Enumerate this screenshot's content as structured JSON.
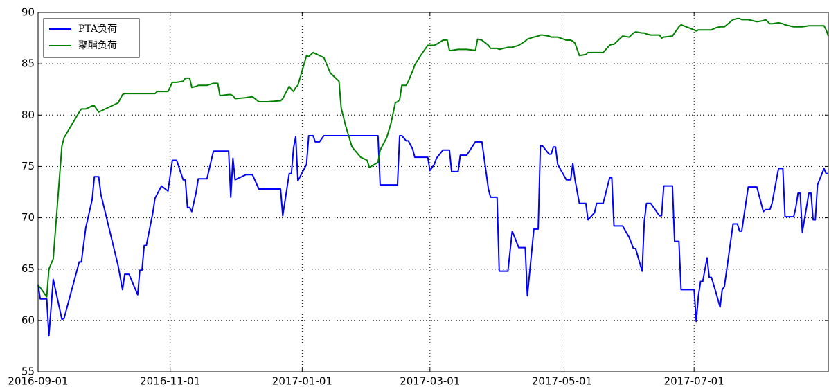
{
  "chart_data": {
    "type": "line",
    "x": [
      "2016-09-01",
      "2016-09-02",
      "2016-09-05",
      "2016-09-06",
      "2016-09-08",
      "2016-09-12",
      "2016-09-13",
      "2016-09-20",
      "2016-09-21",
      "2016-09-23",
      "2016-09-26",
      "2016-09-27",
      "2016-09-29",
      "2016-09-30",
      "2016-10-08",
      "2016-10-10",
      "2016-10-11",
      "2016-10-13",
      "2016-10-17",
      "2016-10-18",
      "2016-10-19",
      "2016-10-20",
      "2016-10-21",
      "2016-10-24",
      "2016-10-25",
      "2016-10-26",
      "2016-10-28",
      "2016-10-31",
      "2016-11-02",
      "2016-11-04",
      "2016-11-07",
      "2016-11-08",
      "2016-11-09",
      "2016-11-10",
      "2016-11-11",
      "2016-11-13",
      "2016-11-14",
      "2016-11-18",
      "2016-11-21",
      "2016-11-23",
      "2016-11-24",
      "2016-11-28",
      "2016-11-29",
      "2016-11-30",
      "2016-12-01",
      "2016-12-06",
      "2016-12-09",
      "2016-12-12",
      "2016-12-16",
      "2016-12-22",
      "2016-12-23",
      "2016-12-26",
      "2016-12-27",
      "2016-12-28",
      "2016-12-29",
      "2016-12-30",
      "2017-01-03",
      "2017-01-04",
      "2017-01-06",
      "2017-01-07",
      "2017-01-09",
      "2017-01-11",
      "2017-01-14",
      "2017-01-18",
      "2017-01-19",
      "2017-01-21",
      "2017-01-24",
      "2017-01-28",
      "2017-01-31",
      "2017-02-01",
      "2017-02-05",
      "2017-02-06",
      "2017-02-09",
      "2017-02-11",
      "2017-02-13",
      "2017-02-14",
      "2017-02-15",
      "2017-02-16",
      "2017-02-18",
      "2017-02-19",
      "2017-02-21",
      "2017-02-22",
      "2017-02-25",
      "2017-02-28",
      "2017-03-01",
      "2017-03-03",
      "2017-03-04",
      "2017-03-07",
      "2017-03-09",
      "2017-03-10",
      "2017-03-11",
      "2017-03-14",
      "2017-03-15",
      "2017-03-18",
      "2017-03-22",
      "2017-03-23",
      "2017-03-25",
      "2017-03-28",
      "2017-03-29",
      "2017-04-01",
      "2017-04-02",
      "2017-04-06",
      "2017-04-08",
      "2017-04-11",
      "2017-04-14",
      "2017-04-15",
      "2017-04-18",
      "2017-04-20",
      "2017-04-21",
      "2017-04-22",
      "2017-04-25",
      "2017-04-26",
      "2017-04-27",
      "2017-04-28",
      "2017-04-29",
      "2017-05-03",
      "2017-05-05",
      "2017-05-06",
      "2017-05-07",
      "2017-05-09",
      "2017-05-12",
      "2017-05-13",
      "2017-05-16",
      "2017-05-17",
      "2017-05-20",
      "2017-05-23",
      "2017-05-24",
      "2017-05-25",
      "2017-05-29",
      "2017-06-01",
      "2017-06-03",
      "2017-06-04",
      "2017-06-07",
      "2017-06-08",
      "2017-06-09",
      "2017-06-11",
      "2017-06-15",
      "2017-06-16",
      "2017-06-17",
      "2017-06-21",
      "2017-06-22",
      "2017-06-24",
      "2017-06-25",
      "2017-07-01",
      "2017-07-02",
      "2017-07-03",
      "2017-07-04",
      "2017-07-05",
      "2017-07-07",
      "2017-07-08",
      "2017-07-09",
      "2017-07-11",
      "2017-07-13",
      "2017-07-14",
      "2017-07-15",
      "2017-07-19",
      "2017-07-21",
      "2017-07-22",
      "2017-07-23",
      "2017-07-26",
      "2017-07-30",
      "2017-08-02",
      "2017-08-03",
      "2017-08-05",
      "2017-08-06",
      "2017-08-09",
      "2017-08-11",
      "2017-08-12",
      "2017-08-16",
      "2017-08-17",
      "2017-08-18",
      "2017-08-19",
      "2017-08-20",
      "2017-08-23",
      "2017-08-24",
      "2017-08-25",
      "2017-08-26",
      "2017-08-27",
      "2017-08-30",
      "2017-08-31",
      "2017-09-01"
    ],
    "series": [
      {
        "name": "PTA负荷",
        "color": "#0000ff",
        "values": [
          63.5,
          62.1,
          62.1,
          58.5,
          64.0,
          60.1,
          60.2,
          65.7,
          65.7,
          69.0,
          71.8,
          74.0,
          74.0,
          72.3,
          65.3,
          63.0,
          64.5,
          64.5,
          62.5,
          64.9,
          64.9,
          67.3,
          67.3,
          70.5,
          71.9,
          72.3,
          73.1,
          72.6,
          75.6,
          75.6,
          73.7,
          73.7,
          71.0,
          71.0,
          70.6,
          72.5,
          73.8,
          73.8,
          76.5,
          76.5,
          76.5,
          76.5,
          72.0,
          75.8,
          73.7,
          74.2,
          74.2,
          72.8,
          72.8,
          72.8,
          70.2,
          74.3,
          74.3,
          76.8,
          77.9,
          73.6,
          75.2,
          78.0,
          78.0,
          77.4,
          77.4,
          78.0,
          78.0,
          78.0,
          78.0,
          78.0,
          78.0,
          78.0,
          78.0,
          78.0,
          78.0,
          73.2,
          73.2,
          73.2,
          73.2,
          73.2,
          78.0,
          78.0,
          77.5,
          77.5,
          76.7,
          75.9,
          75.9,
          75.9,
          74.6,
          75.2,
          75.8,
          76.6,
          76.6,
          76.6,
          74.5,
          74.5,
          76.1,
          76.1,
          77.4,
          77.4,
          77.4,
          72.8,
          72.0,
          72.0,
          64.8,
          64.8,
          68.7,
          67.1,
          67.1,
          62.4,
          68.9,
          68.9,
          77.0,
          77.0,
          76.2,
          76.2,
          76.9,
          76.9,
          75.2,
          73.7,
          73.7,
          75.3,
          73.7,
          71.4,
          71.4,
          69.8,
          70.5,
          71.4,
          71.4,
          73.9,
          73.9,
          69.2,
          69.2,
          68.1,
          67.0,
          67.0,
          64.8,
          69.6,
          71.4,
          71.4,
          70.2,
          70.2,
          73.1,
          73.1,
          67.7,
          67.7,
          63.0,
          63.0,
          59.9,
          62.4,
          63.8,
          63.8,
          66.1,
          64.2,
          64.2,
          62.8,
          61.3,
          63.0,
          63.3,
          69.4,
          69.4,
          68.7,
          68.7,
          73.0,
          73.0,
          70.6,
          70.8,
          70.8,
          71.4,
          74.8,
          74.8,
          70.1,
          70.1,
          71.0,
          72.4,
          72.4,
          68.6,
          72.4,
          72.4,
          69.8,
          69.8,
          73.2,
          74.8,
          74.3,
          74.3
        ]
      },
      {
        "name": "聚酯负荷",
        "color": "#008000",
        "values": [
          63.4,
          63.2,
          62.3,
          65.0,
          66.0,
          77.0,
          77.8,
          80.3,
          80.6,
          80.6,
          80.9,
          80.9,
          80.3,
          80.4,
          81.2,
          82.0,
          82.1,
          82.1,
          82.1,
          82.1,
          82.1,
          82.1,
          82.1,
          82.1,
          82.1,
          82.3,
          82.3,
          82.3,
          83.2,
          83.2,
          83.3,
          83.6,
          83.6,
          83.6,
          82.7,
          82.8,
          82.9,
          82.9,
          83.1,
          83.1,
          81.9,
          82.0,
          82.0,
          81.9,
          81.6,
          81.7,
          81.8,
          81.3,
          81.3,
          81.4,
          81.6,
          82.8,
          82.5,
          82.3,
          82.7,
          82.9,
          85.8,
          85.7,
          86.1,
          86.0,
          85.8,
          85.6,
          84.1,
          83.3,
          80.7,
          79.0,
          76.9,
          75.9,
          75.6,
          74.9,
          75.4,
          76.6,
          77.8,
          79.2,
          81.2,
          81.3,
          81.5,
          82.9,
          82.9,
          83.3,
          84.3,
          84.9,
          85.9,
          86.8,
          86.8,
          86.8,
          86.9,
          87.3,
          87.3,
          86.3,
          86.3,
          86.4,
          86.4,
          86.4,
          86.3,
          87.4,
          87.3,
          86.8,
          86.5,
          86.5,
          86.4,
          86.6,
          86.6,
          86.8,
          87.2,
          87.4,
          87.6,
          87.7,
          87.8,
          87.8,
          87.7,
          87.6,
          87.6,
          87.6,
          87.6,
          87.3,
          87.3,
          87.2,
          87.0,
          85.8,
          85.9,
          86.1,
          86.1,
          86.1,
          86.1,
          86.8,
          86.9,
          86.9,
          87.7,
          87.6,
          88.0,
          88.1,
          88.0,
          88.0,
          87.9,
          87.8,
          87.8,
          87.5,
          87.6,
          87.7,
          88.0,
          88.6,
          88.8,
          88.3,
          88.2,
          88.3,
          88.3,
          88.3,
          88.3,
          88.3,
          88.3,
          88.5,
          88.6,
          88.6,
          88.6,
          89.3,
          89.4,
          89.4,
          89.3,
          89.3,
          89.1,
          89.2,
          89.3,
          88.9,
          88.9,
          89.0,
          88.9,
          88.8,
          88.6,
          88.6,
          88.6,
          88.6,
          88.6,
          88.7,
          88.7,
          88.7,
          88.7,
          88.7,
          88.7,
          88.3,
          87.7
        ]
      }
    ],
    "xlim": [
      "2016-09-01",
      "2017-09-01"
    ],
    "xticks": [
      "2016-09-01",
      "2016-11-01",
      "2017-01-01",
      "2017-03-01",
      "2017-05-01",
      "2017-07-01"
    ],
    "ylim": [
      55,
      90
    ],
    "yticks": [
      55,
      60,
      65,
      70,
      75,
      80,
      85,
      90
    ],
    "grid": true,
    "legend": "upper left"
  }
}
